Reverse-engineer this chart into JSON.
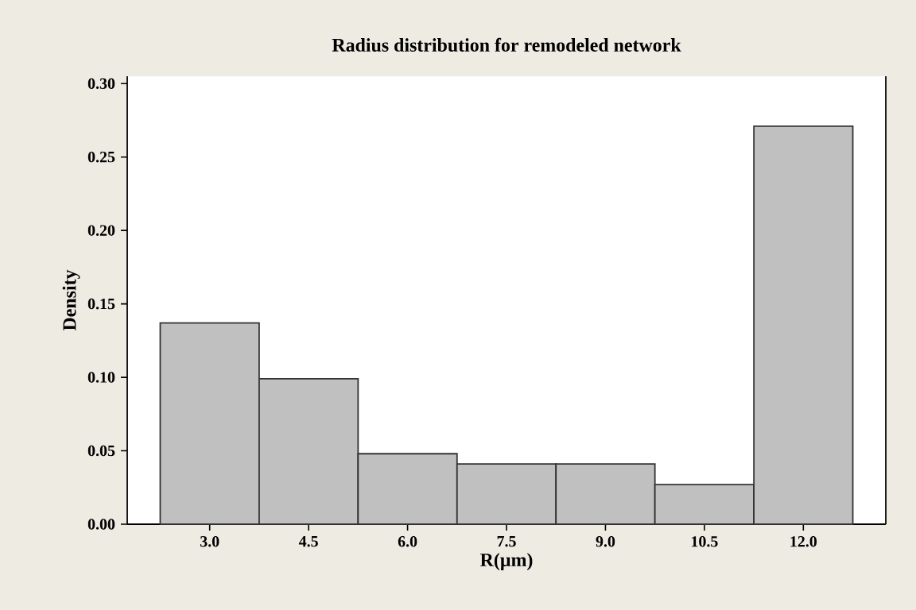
{
  "chart_data": {
    "type": "histogram",
    "title": "Radius distribution for remodeled network",
    "xlabel": "R(µm)",
    "ylabel": "Density",
    "bins": [
      2.25,
      3.75,
      5.25,
      6.75,
      8.25,
      9.75,
      11.25,
      12.75
    ],
    "values": [
      0.137,
      0.099,
      0.048,
      0.041,
      0.041,
      0.027,
      0.271
    ],
    "color": "#c0c0c0",
    "xlim": [
      1.75,
      13.25
    ],
    "ylim": [
      0,
      0.305
    ],
    "xticks": [
      {
        "value": 3,
        "label": "3.0"
      },
      {
        "value": 4.5,
        "label": "4.5"
      },
      {
        "value": 6,
        "label": "6.0"
      },
      {
        "value": 7.5,
        "label": "7.5"
      },
      {
        "value": 9,
        "label": "9.0"
      },
      {
        "value": 10.5,
        "label": "10.5"
      },
      {
        "value": 12,
        "label": "12.0"
      }
    ],
    "yticks": [
      {
        "value": 0,
        "label": "0.00"
      },
      {
        "value": 0.05,
        "label": "0.05"
      },
      {
        "value": 0.1,
        "label": "0.10"
      },
      {
        "value": 0.15,
        "label": "0.15"
      },
      {
        "value": 0.2,
        "label": "0.20"
      },
      {
        "value": 0.25,
        "label": "0.25"
      },
      {
        "value": 0.3,
        "label": "0.30"
      }
    ]
  }
}
